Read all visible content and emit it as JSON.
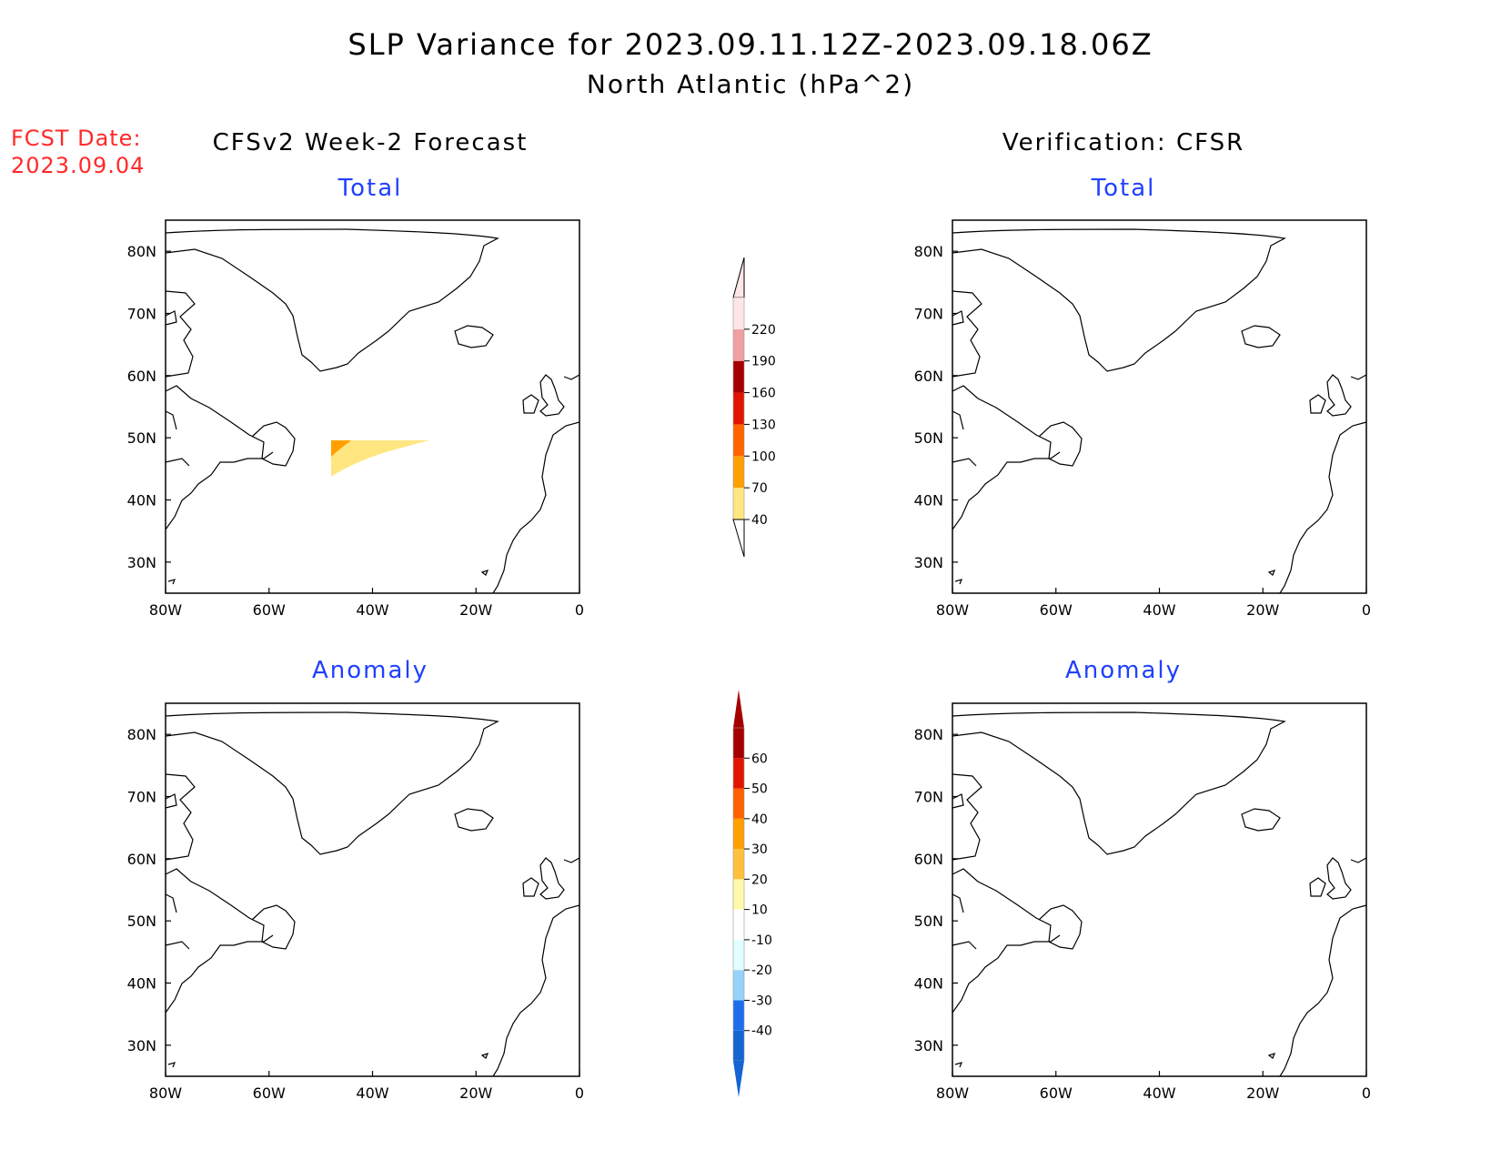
{
  "header": {
    "title": "SLP Variance for 2023.09.11.12Z-2023.09.18.06Z",
    "subtitle": "North Atlantic (hPa^2)",
    "fcst_label": "FCST Date:",
    "fcst_date": "2023.09.04"
  },
  "columns": {
    "left": "CFSv2 Week-2 Forecast",
    "right": "Verification: CFSR"
  },
  "chart_data": [
    {
      "type": "heatmap",
      "panel": "forecast-total",
      "title": "Total",
      "x_ticks": [
        "80W",
        "60W",
        "40W",
        "20W",
        "0"
      ],
      "y_ticks": [
        "30N",
        "40N",
        "50N",
        "60N",
        "70N",
        "80N"
      ],
      "xlim": [
        -80,
        0
      ],
      "ylim": [
        25,
        85
      ]
    },
    {
      "type": "heatmap",
      "panel": "verification-total",
      "title": "Total",
      "x_ticks": [
        "80W",
        "60W",
        "40W",
        "20W",
        "0"
      ],
      "y_ticks": [
        "30N",
        "40N",
        "50N",
        "60N",
        "70N",
        "80N"
      ],
      "xlim": [
        -80,
        0
      ],
      "ylim": [
        25,
        85
      ]
    },
    {
      "type": "heatmap",
      "panel": "forecast-anomaly",
      "title": "Anomaly",
      "x_ticks": [
        "80W",
        "60W",
        "40W",
        "20W",
        "0"
      ],
      "y_ticks": [
        "30N",
        "40N",
        "50N",
        "60N",
        "70N",
        "80N"
      ],
      "xlim": [
        -80,
        0
      ],
      "ylim": [
        25,
        85
      ]
    },
    {
      "type": "heatmap",
      "panel": "verification-anomaly",
      "title": "Anomaly",
      "x_ticks": [
        "80W",
        "60W",
        "40W",
        "20W",
        "0"
      ],
      "y_ticks": [
        "30N",
        "40N",
        "50N",
        "60N",
        "70N",
        "80N"
      ],
      "xlim": [
        -80,
        0
      ],
      "ylim": [
        25,
        85
      ]
    }
  ],
  "colorbars": {
    "total": {
      "levels": [
        "40",
        "70",
        "100",
        "130",
        "160",
        "190",
        "220"
      ],
      "colors": [
        "#ffe680",
        "#ffa000",
        "#ff6400",
        "#e11400",
        "#a50000",
        "#f0a0a0",
        "#ffe6e6"
      ]
    },
    "anomaly": {
      "levels": [
        "-40",
        "-30",
        "-20",
        "-10",
        "10",
        "20",
        "30",
        "40",
        "50",
        "60"
      ],
      "colors": [
        "#1464d2",
        "#1e6eeb",
        "#96d2fa",
        "#e1ffff",
        "#ffffff",
        "#fffaaa",
        "#ffc03c",
        "#ffa000",
        "#ff6000",
        "#e11400",
        "#a50000"
      ]
    }
  },
  "palette": {
    "y1": "#ffe680",
    "o1": "#ffa000",
    "o2": "#ff6400",
    "r1": "#e11400",
    "r2": "#a50000",
    "p1": "#f0a0a0",
    "p2": "#ffe6e6",
    "b4": "#1464d2",
    "b3": "#1e6eeb",
    "b2": "#96d2fa",
    "b1": "#e1ffff",
    "ay1": "#fffaaa",
    "ay2": "#ffc03c",
    "ao": "#ffa000",
    "ar": "#ff6000"
  }
}
